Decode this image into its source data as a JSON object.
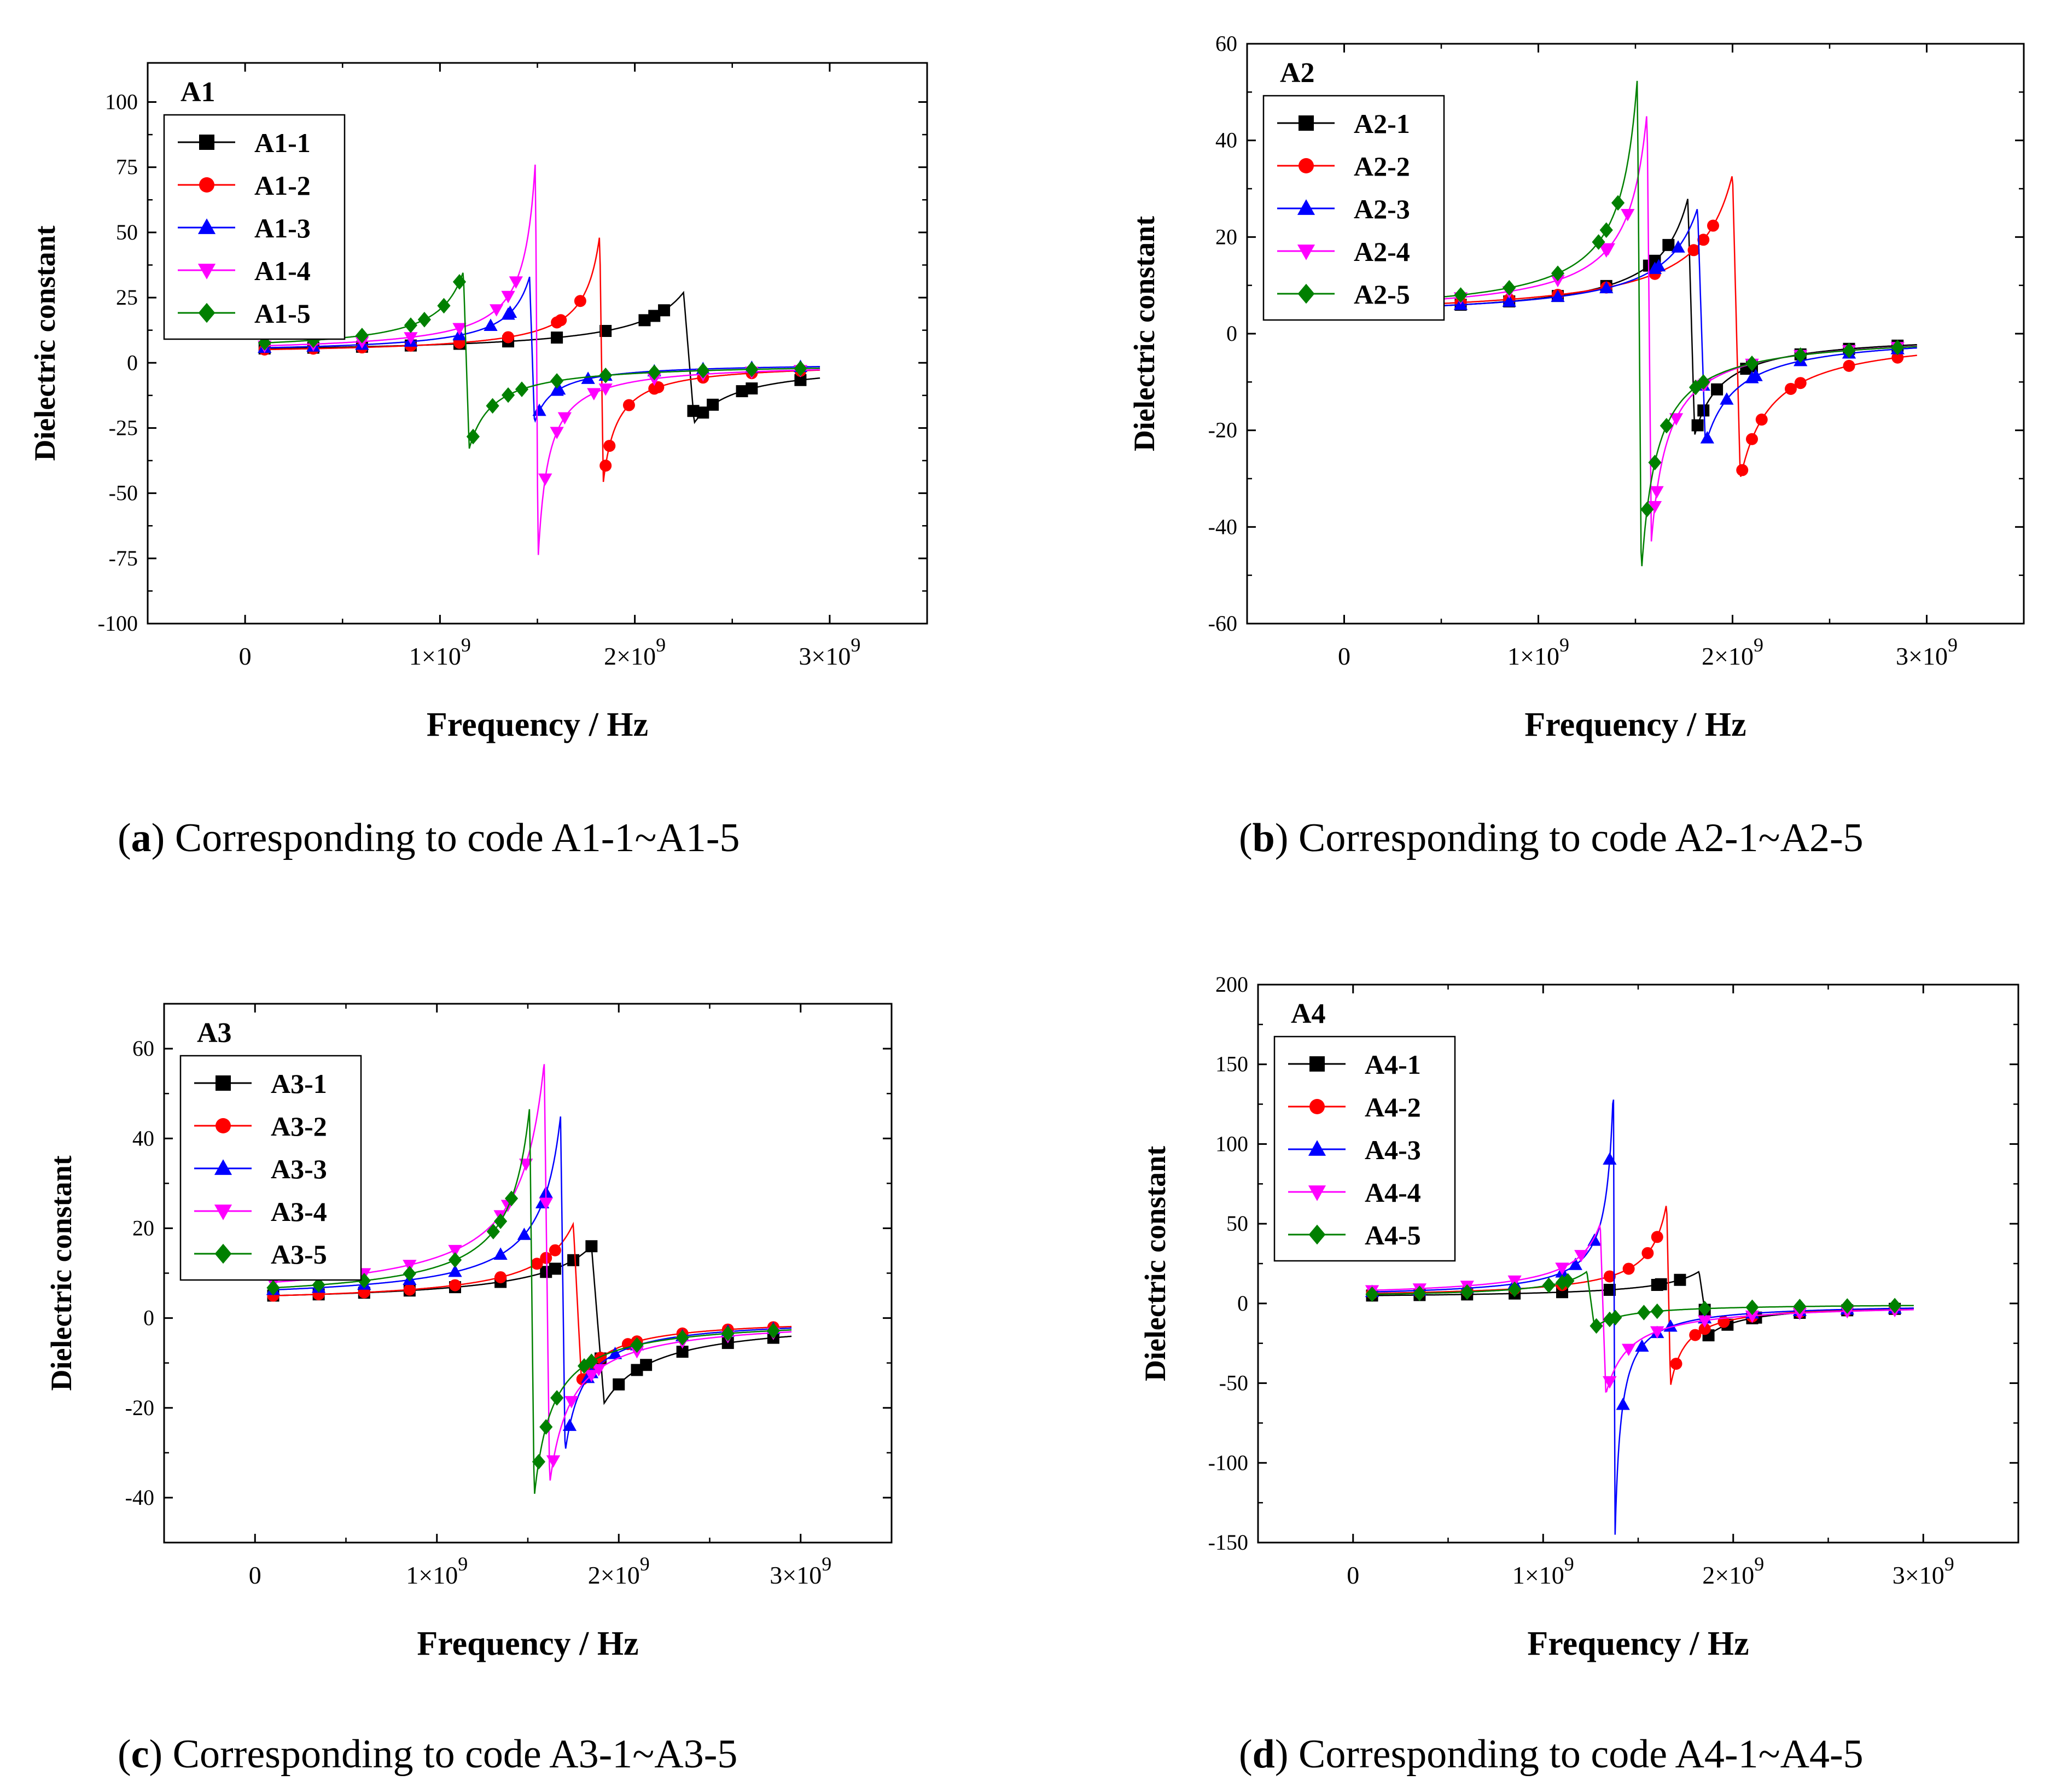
{
  "chart_data": [
    {
      "type": "line",
      "panel_label": "A1",
      "xlabel": "Frequency / Hz",
      "ylabel": "Dielectric constant",
      "xlim": [
        -500000000.0,
        3500000000.0
      ],
      "ylim": [
        -100,
        115
      ],
      "yticks": [
        -100,
        -75,
        -50,
        -25,
        0,
        25,
        50,
        75,
        100
      ],
      "xticks": [
        {
          "value": 0,
          "label": "0"
        },
        {
          "value": 1000000000.0,
          "label": "1×10⁹"
        },
        {
          "value": 2000000000.0,
          "label": "2×10⁹"
        },
        {
          "value": 3000000000.0,
          "label": "3×10⁹"
        }
      ],
      "legend_position": "top-left",
      "caption": {
        "letter": "a",
        "text": " Corresponding to code A1-1~A1-5"
      },
      "series": [
        {
          "name": "A1-1",
          "color": "#000000",
          "marker": "square",
          "f0": 2250000000.0,
          "g": 55000000.0,
          "peak": 27,
          "trough": -23,
          "eps0": 3,
          "smooth": 3
        },
        {
          "name": "A1-2",
          "color": "#ff0000",
          "marker": "circle",
          "f0": 1820000000.0,
          "g": 18000000.0,
          "peak": 49,
          "trough": -46,
          "eps0": 3,
          "smooth": 3
        },
        {
          "name": "A1-3",
          "color": "#0000ff",
          "marker": "triangle-up",
          "f0": 1460000000.0,
          "g": 25000000.0,
          "peak": 33,
          "trough": -23,
          "eps0": 3.5,
          "smooth": 3.5
        },
        {
          "name": "A1-4",
          "color": "#ff00ff",
          "marker": "triangle-down",
          "f0": 1490000000.0,
          "g": 13000000.0,
          "peak": 78,
          "trough": -76,
          "eps0": 3.5,
          "smooth": 3.5
        },
        {
          "name": "A1-5",
          "color": "#008000",
          "marker": "diamond",
          "f0": 1120000000.0,
          "g": 30000000.0,
          "peak": 35,
          "trough": -33,
          "eps0": 4,
          "smooth": 4
        }
      ]
    },
    {
      "type": "line",
      "panel_label": "A2",
      "xlabel": "Frequency / Hz",
      "ylabel": "Dielectric constant",
      "xlim": [
        -500000000.0,
        3500000000.0
      ],
      "ylim": [
        -60,
        60
      ],
      "yticks": [
        -60,
        -40,
        -20,
        0,
        20,
        40,
        60
      ],
      "xticks": [
        {
          "value": 0,
          "label": "0"
        },
        {
          "value": 1000000000.0,
          "label": "1×10⁹"
        },
        {
          "value": 2000000000.0,
          "label": "2×10⁹"
        },
        {
          "value": 3000000000.0,
          "label": "3×10⁹"
        }
      ],
      "legend_position": "top-left",
      "caption": {
        "letter": "b",
        "text": " Corresponding to code A2-1~A2-5"
      },
      "series": [
        {
          "name": "A2-1",
          "color": "#000000",
          "marker": "square",
          "f0": 1770000000.0,
          "g": 35000000.0,
          "peak": 28,
          "trough": -21,
          "eps0": 3,
          "smooth": 3
        },
        {
          "name": "A2-2",
          "color": "#ff0000",
          "marker": "circle",
          "f0": 2000000000.0,
          "g": 40000000.0,
          "peak": 33,
          "trough": -30,
          "eps0": 3,
          "smooth": 3
        },
        {
          "name": "A2-3",
          "color": "#0000ff",
          "marker": "triangle-up",
          "f0": 1820000000.0,
          "g": 40000000.0,
          "peak": 26,
          "trough": -23,
          "eps0": 3,
          "smooth": 3
        },
        {
          "name": "A2-4",
          "color": "#ff00ff",
          "marker": "triangle-down",
          "f0": 1560000000.0,
          "g": 22000000.0,
          "peak": 46,
          "trough": -43,
          "eps0": 3.5,
          "smooth": 3.5
        },
        {
          "name": "A2-5",
          "color": "#008000",
          "marker": "diamond",
          "f0": 1510000000.0,
          "g": 20000000.0,
          "peak": 53,
          "trough": -50,
          "eps0": 3.5,
          "smooth": 3.5
        }
      ]
    },
    {
      "type": "line",
      "panel_label": "A3",
      "xlabel": "Frequency / Hz",
      "ylabel": "Dielectric constant",
      "xlim": [
        -500000000.0,
        3500000000.0
      ],
      "ylim": [
        -50,
        70
      ],
      "yticks": [
        -40,
        -20,
        0,
        20,
        40,
        60
      ],
      "xticks": [
        {
          "value": 0,
          "label": "0"
        },
        {
          "value": 1000000000.0,
          "label": "1×10⁹"
        },
        {
          "value": 2000000000.0,
          "label": "2×10⁹"
        },
        {
          "value": 3000000000.0,
          "label": "3×10⁹"
        }
      ],
      "legend_position": "top-left",
      "caption": {
        "letter": "c",
        "text": " Corresponding to code A3-1~A3-5"
      },
      "series": [
        {
          "name": "A3-1",
          "color": "#000000",
          "marker": "square",
          "f0": 1850000000.0,
          "g": 70000000.0,
          "peak": 16,
          "trough": -19,
          "eps0": 3,
          "smooth": 3
        },
        {
          "name": "A3-2",
          "color": "#ff0000",
          "marker": "circle",
          "f0": 1750000000.0,
          "g": 45000000.0,
          "peak": 21,
          "trough": -14,
          "eps0": 3,
          "smooth": 3
        },
        {
          "name": "A3-3",
          "color": "#0000ff",
          "marker": "triangle-up",
          "f0": 1680000000.0,
          "g": 25000000.0,
          "peak": 45,
          "trough": -30,
          "eps0": 3.5,
          "smooth": 3.5
        },
        {
          "name": "A3-4",
          "color": "#ff00ff",
          "marker": "triangle-down",
          "f0": 1590000000.0,
          "g": 30000000.0,
          "peak": 57,
          "trough": -37,
          "eps0": 3.5,
          "smooth": 3.5
        },
        {
          "name": "A3-5",
          "color": "#008000",
          "marker": "diamond",
          "f0": 1510000000.0,
          "g": 25000000.0,
          "peak": 47,
          "trough": -40,
          "eps0": 3.5,
          "smooth": 3.5
        }
      ]
    },
    {
      "type": "line",
      "panel_label": "A4",
      "xlabel": "Frequency / Hz",
      "ylabel": "Dielectric constant",
      "xlim": [
        -500000000.0,
        3500000000.0
      ],
      "ylim": [
        -150,
        200
      ],
      "yticks": [
        -150,
        -100,
        -50,
        0,
        50,
        100,
        150,
        200
      ],
      "xticks": [
        {
          "value": 0,
          "label": "0"
        },
        {
          "value": 1000000000.0,
          "label": "1×10⁹"
        },
        {
          "value": 2000000000.0,
          "label": "2×10⁹"
        },
        {
          "value": 3000000000.0,
          "label": "3×10⁹"
        }
      ],
      "legend_position": "top-left",
      "caption": {
        "letter": "d",
        "text": " Corresponding to code A4-1~A4-5"
      },
      "series": [
        {
          "name": "A4-1",
          "color": "#000000",
          "marker": "square",
          "f0": 1820000000.0,
          "g": 50000000.0,
          "peak": 20,
          "trough": -20,
          "eps0": 3,
          "smooth": 3
        },
        {
          "name": "A4-2",
          "color": "#ff0000",
          "marker": "circle",
          "f0": 1650000000.0,
          "g": 20000000.0,
          "peak": 63,
          "trough": -52,
          "eps0": 3,
          "smooth": 3
        },
        {
          "name": "A4-3",
          "color": "#0000ff",
          "marker": "triangle-up",
          "f0": 1370000000.0,
          "g": 8000000.0,
          "peak": 138,
          "trough": -147,
          "eps0": 3.5,
          "smooth": 3.5
        },
        {
          "name": "A4-4",
          "color": "#ff00ff",
          "marker": "triangle-down",
          "f0": 1300000000.0,
          "g": 30000000.0,
          "peak": 50,
          "trough": -57,
          "eps0": 3.5,
          "smooth": 3.5
        },
        {
          "name": "A4-5",
          "color": "#008000",
          "marker": "diamond",
          "f0": 1230000000.0,
          "g": 40000000.0,
          "peak": 20,
          "trough": -15,
          "eps0": 3.5,
          "smooth": 3.5
        }
      ]
    }
  ]
}
